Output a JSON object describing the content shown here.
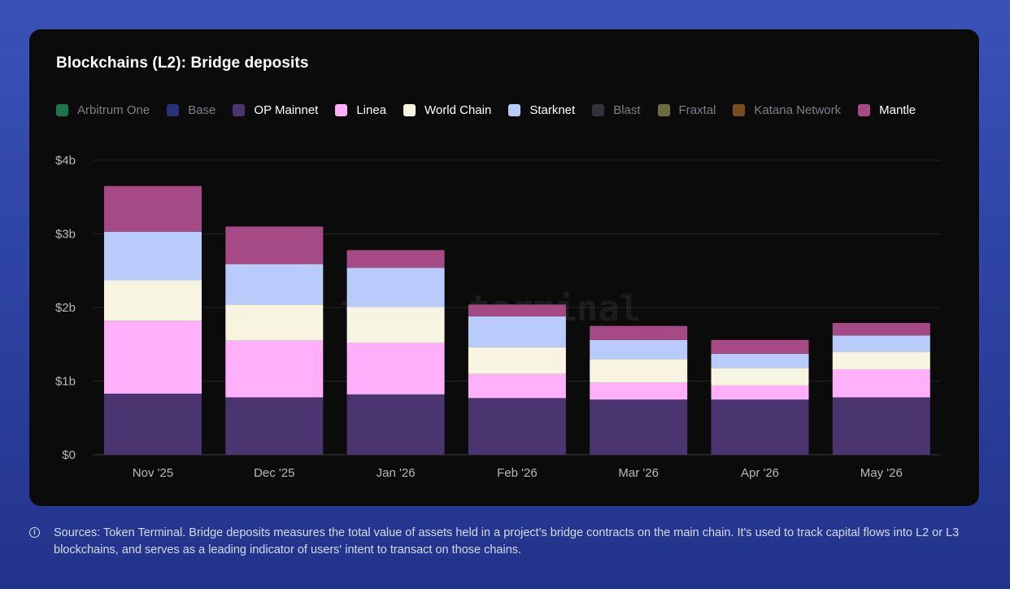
{
  "title": "Blockchains (L2): Bridge deposits",
  "legend": [
    {
      "label": "Arbitrum One",
      "color": "#1f8a5a",
      "active": false
    },
    {
      "label": "Base",
      "color": "#2e3a8c",
      "active": false
    },
    {
      "label": "OP Mainnet",
      "color": "#4b3570",
      "active": true
    },
    {
      "label": "Linea",
      "color": "#ffb0f8",
      "active": true
    },
    {
      "label": "World Chain",
      "color": "#f8f4e2",
      "active": true
    },
    {
      "label": "Starknet",
      "color": "#b9cbfb",
      "active": true
    },
    {
      "label": "Blast",
      "color": "#3a3a46",
      "active": false
    },
    {
      "label": "Fraxtal",
      "color": "#7d7d4e",
      "active": false
    },
    {
      "label": "Katana Network",
      "color": "#8a5b25",
      "active": false
    },
    {
      "label": "Mantle",
      "color": "#a64a86",
      "active": true
    }
  ],
  "chart_data": {
    "type": "bar",
    "stacked": true,
    "categories": [
      "Nov '25",
      "Dec '25",
      "Jan '26",
      "Feb '26",
      "Mar '26",
      "Apr '26",
      "May '26"
    ],
    "series": [
      {
        "name": "OP Mainnet",
        "color": "#4b3570",
        "values": [
          0.83,
          0.78,
          0.82,
          0.77,
          0.75,
          0.75,
          0.78
        ]
      },
      {
        "name": "Linea",
        "color": "#ffb0f8",
        "values": [
          0.99,
          0.77,
          0.7,
          0.33,
          0.23,
          0.19,
          0.38
        ]
      },
      {
        "name": "World Chain",
        "color": "#f8f4e2",
        "values": [
          0.55,
          0.49,
          0.49,
          0.36,
          0.32,
          0.24,
          0.24
        ]
      },
      {
        "name": "Starknet",
        "color": "#b9cbfb",
        "values": [
          0.66,
          0.55,
          0.53,
          0.42,
          0.26,
          0.19,
          0.22
        ]
      },
      {
        "name": "Mantle",
        "color": "#a64a86",
        "values": [
          0.62,
          0.51,
          0.24,
          0.16,
          0.19,
          0.19,
          0.17
        ]
      }
    ],
    "ylim": [
      0,
      4
    ],
    "yticks": [
      0,
      1,
      2,
      3,
      4
    ],
    "ytick_labels": [
      "$0",
      "$1b",
      "$2b",
      "$3b",
      "$4b"
    ],
    "grid": true,
    "legend_position": "top",
    "watermark": "token terminal_"
  },
  "footer": {
    "info_glyph": "i",
    "text": "Sources: Token Terminal. Bridge deposits measures the total value of assets held in a project's bridge contracts on the main chain. It's used to track capital flows into L2 or L3 blockchains, and serves as a leading indicator of users' intent to transact on those chains."
  }
}
